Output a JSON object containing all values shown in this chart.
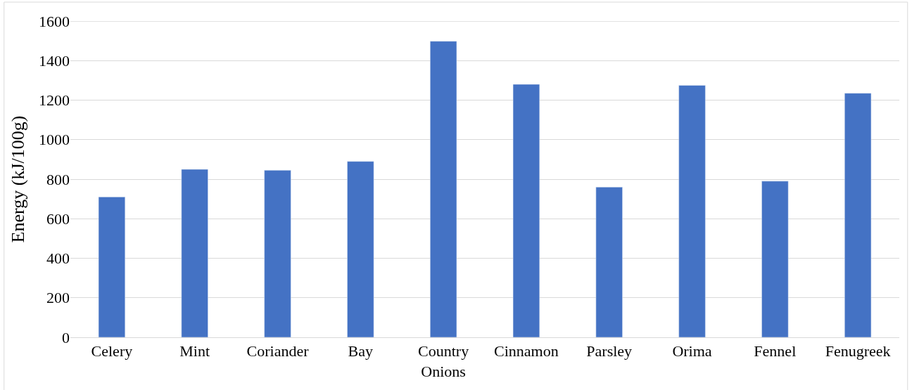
{
  "chart_data": {
    "type": "bar",
    "ylabel": "Energy (kJ/100g)",
    "categories": [
      "Celery",
      "Mint",
      "Coriander",
      "Bay",
      "Country Onions",
      "Cinnamon",
      "Parsley",
      "Orima",
      "Fennel",
      "Fenugreek"
    ],
    "values": [
      710,
      850,
      845,
      890,
      1498,
      1280,
      760,
      1275,
      790,
      1235
    ],
    "color": "#4472c4",
    "ylim": [
      0,
      1600
    ],
    "yticks": [
      0,
      200,
      400,
      600,
      800,
      1000,
      1200,
      1400,
      1600
    ],
    "grid": "y"
  }
}
